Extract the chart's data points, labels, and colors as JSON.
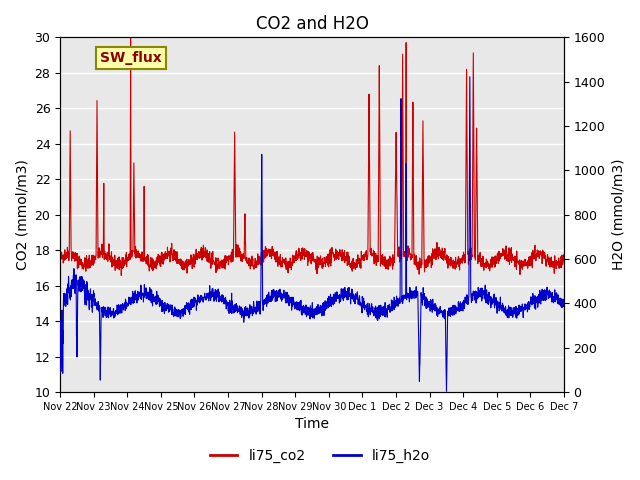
{
  "title": "CO2 and H2O",
  "xlabel": "Time",
  "ylabel_left": "CO2 (mmol/m3)",
  "ylabel_right": "H2O (mmol/m3)",
  "ylim_left": [
    10,
    30
  ],
  "ylim_right": [
    0,
    1600
  ],
  "color_co2": "#cc0000",
  "color_h2o": "#0000cc",
  "background_color": "#e8e8e8",
  "annotation_text": "SW_flux",
  "annotation_bg": "#ffffaa",
  "annotation_border": "#888800",
  "legend_labels": [
    "li75_co2",
    "li75_h2o"
  ],
  "title_fontsize": 12,
  "axis_fontsize": 10,
  "tick_fontsize": 9
}
